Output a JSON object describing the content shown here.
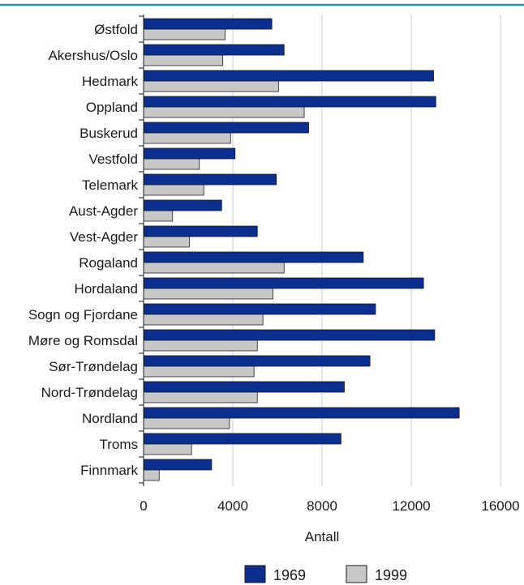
{
  "chart_data": {
    "type": "bar",
    "orientation": "horizontal",
    "categories": [
      "Østfold",
      "Akershus/Oslo",
      "Hedmark",
      "Oppland",
      "Buskerud",
      "Vestfold",
      "Telemark",
      "Aust-Agder",
      "Vest-Agder",
      "Rogaland",
      "Hordaland",
      "Sogn og Fjordane",
      "Møre og Romsdal",
      "Sør-Trøndelag",
      "Nord-Trøndelag",
      "Nordland",
      "Troms",
      "Finnmark"
    ],
    "series": [
      {
        "name": "1969",
        "color": "#0b2e8f",
        "values": [
          5750,
          6300,
          13000,
          13100,
          7400,
          4100,
          5950,
          3500,
          5100,
          9850,
          12550,
          10400,
          13050,
          10150,
          9000,
          14150,
          8850,
          3050
        ]
      },
      {
        "name": "1999",
        "color": "#c8c8c8",
        "values": [
          3650,
          3550,
          6050,
          7200,
          3900,
          2500,
          2700,
          1300,
          2050,
          6300,
          5800,
          5350,
          5100,
          4950,
          5100,
          3850,
          2150,
          700
        ]
      }
    ],
    "xlabel": "Antall",
    "ylabel": "",
    "xlim": [
      0,
      16000
    ],
    "xticks": [
      "0",
      "4000",
      "8000",
      "12000",
      "16000"
    ],
    "grid": true,
    "legend_position": "bottom-center",
    "top_rule_color": "#1a9aa0"
  }
}
